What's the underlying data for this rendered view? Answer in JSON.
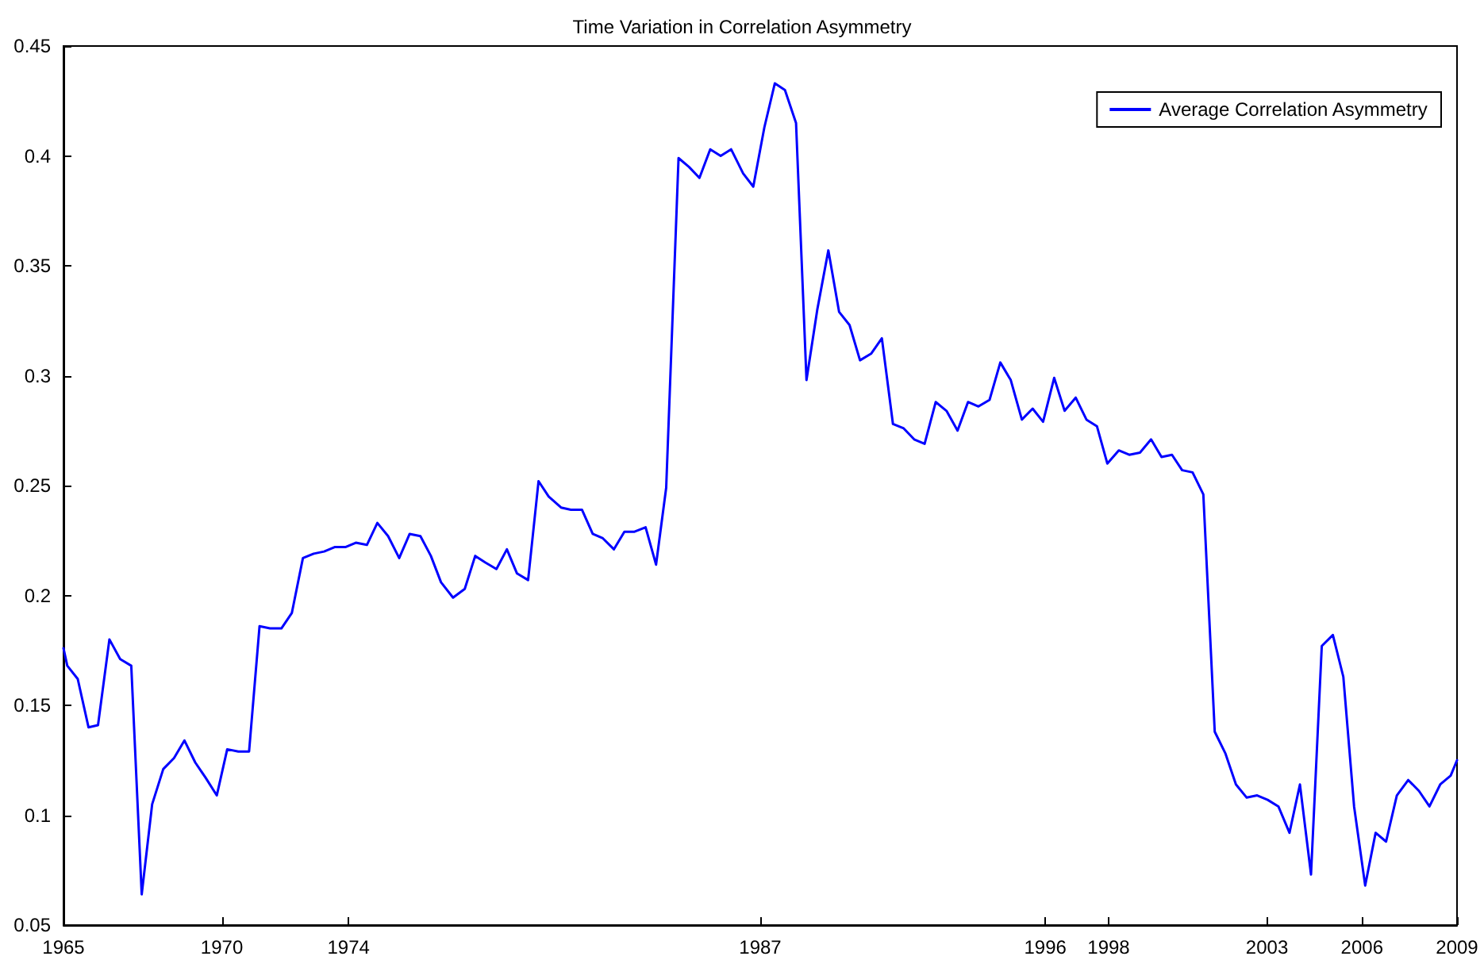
{
  "chart_data": {
    "type": "line",
    "title": "Time Variation in Correlation Asymmetry",
    "xlim": [
      1965,
      2009
    ],
    "xticks": [
      1965,
      1970,
      1974,
      1987,
      1996,
      1998,
      2003,
      2006,
      2009
    ],
    "ylim": [
      0.05,
      0.45
    ],
    "yticks": [
      0.05,
      0.1,
      0.15,
      0.2,
      0.25,
      0.3,
      0.35,
      0.4,
      0.45
    ],
    "grid": false,
    "legend": "top right",
    "marker": "none",
    "line_style": "solid",
    "x": [
      1965.0,
      1965.12,
      1965.45,
      1965.79,
      1966.09,
      1966.45,
      1966.79,
      1967.14,
      1967.47,
      1967.8,
      1968.15,
      1968.49,
      1968.82,
      1969.16,
      1969.49,
      1969.84,
      1970.17,
      1970.52,
      1970.86,
      1971.19,
      1971.52,
      1971.88,
      1972.21,
      1972.56,
      1972.9,
      1973.23,
      1973.56,
      1973.9,
      1974.23,
      1974.58,
      1974.91,
      1975.25,
      1975.6,
      1975.93,
      1976.27,
      1976.6,
      1976.92,
      1977.3,
      1977.67,
      1978.0,
      1978.32,
      1978.67,
      1979.0,
      1979.32,
      1979.67,
      1980.0,
      1980.32,
      1980.71,
      1981.02,
      1981.37,
      1981.71,
      1982.03,
      1982.38,
      1982.71,
      1983.03,
      1983.38,
      1983.71,
      1984.03,
      1984.42,
      1984.75,
      1985.08,
      1985.42,
      1985.75,
      1986.08,
      1986.46,
      1986.78,
      1987.13,
      1987.46,
      1987.78,
      1988.13,
      1988.46,
      1988.8,
      1989.15,
      1989.49,
      1989.82,
      1990.15,
      1990.5,
      1990.84,
      1991.19,
      1991.53,
      1991.86,
      1992.19,
      1992.54,
      1992.88,
      1993.23,
      1993.56,
      1993.89,
      1994.24,
      1994.58,
      1994.91,
      1995.26,
      1995.6,
      1995.93,
      1996.28,
      1996.61,
      1996.96,
      1997.3,
      1997.63,
      1997.96,
      1998.32,
      1998.65,
      1998.99,
      1999.34,
      1999.67,
      2000.0,
      2000.32,
      2000.65,
      2000.99,
      2001.35,
      2001.69,
      2002.02,
      2002.36,
      2002.69,
      2003.02,
      2003.36,
      2003.71,
      2004.04,
      2004.39,
      2004.73,
      2005.08,
      2005.41,
      2005.75,
      2006.1,
      2006.43,
      2006.76,
      2007.1,
      2007.46,
      2007.8,
      2008.13,
      2008.47,
      2008.8,
      2009.0
    ],
    "series": [
      {
        "name": "Average Correlation Asymmetry",
        "color": "#0000ff",
        "values": [
          0.176,
          0.168,
          0.162,
          0.14,
          0.141,
          0.18,
          0.171,
          0.168,
          0.064,
          0.105,
          0.121,
          0.126,
          0.134,
          0.124,
          0.117,
          0.109,
          0.13,
          0.129,
          0.129,
          0.186,
          0.185,
          0.185,
          0.192,
          0.217,
          0.219,
          0.22,
          0.222,
          0.222,
          0.224,
          0.223,
          0.233,
          0.227,
          0.217,
          0.228,
          0.227,
          0.218,
          0.206,
          0.199,
          0.203,
          0.218,
          0.215,
          0.212,
          0.221,
          0.21,
          0.207,
          0.252,
          0.245,
          0.24,
          0.239,
          0.239,
          0.228,
          0.226,
          0.221,
          0.229,
          0.229,
          0.231,
          0.214,
          0.249,
          0.399,
          0.395,
          0.39,
          0.403,
          0.4,
          0.403,
          0.392,
          0.386,
          0.413,
          0.433,
          0.43,
          0.415,
          0.298,
          0.33,
          0.357,
          0.329,
          0.323,
          0.307,
          0.31,
          0.317,
          0.278,
          0.276,
          0.271,
          0.269,
          0.288,
          0.284,
          0.275,
          0.288,
          0.286,
          0.289,
          0.306,
          0.298,
          0.28,
          0.285,
          0.279,
          0.299,
          0.284,
          0.29,
          0.28,
          0.277,
          0.26,
          0.266,
          0.264,
          0.265,
          0.271,
          0.263,
          0.264,
          0.257,
          0.256,
          0.246,
          0.138,
          0.128,
          0.114,
          0.108,
          0.109,
          0.107,
          0.104,
          0.092,
          0.114,
          0.073,
          0.177,
          0.182,
          0.163,
          0.104,
          0.068,
          0.092,
          0.088,
          0.109,
          0.116,
          0.111,
          0.104,
          0.114,
          0.118,
          0.125
        ]
      }
    ]
  }
}
